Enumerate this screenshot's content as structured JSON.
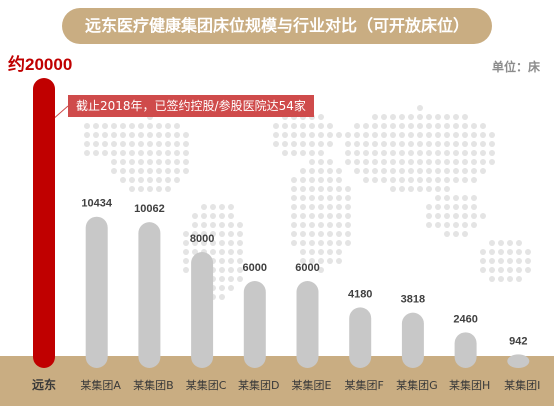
{
  "title": "远东医疗健康集团床位规模与行业对比（可开放床位）",
  "unit": "单位：床",
  "callout": "截止2018年，已签约控股/参股医院达54家",
  "colors": {
    "highlight": "#c00000",
    "bar": "#c8c8c8",
    "banner": "#c9ad82",
    "base": "#c9ad82",
    "callout": "#cf4b4b",
    "map_dots": "#e4e4e4",
    "value_text": "#404040"
  },
  "chart_data": {
    "type": "bar",
    "title": "远东医疗健康集团床位规模与行业对比（可开放床位）",
    "ylabel": "单位：床",
    "xlabel": "",
    "grid": false,
    "legend": "none",
    "ylim": [
      0,
      20000
    ],
    "categories": [
      "远东",
      "某集团A",
      "某集团B",
      "某集团C",
      "某集团D",
      "某集团E",
      "某集团F",
      "某集团G",
      "某集团H",
      "某集团I"
    ],
    "values": [
      20000,
      10434,
      10062,
      8000,
      6000,
      6000,
      4180,
      3818,
      2460,
      942
    ],
    "labels": [
      "约20000",
      "10434",
      "10062",
      "8000",
      "6000",
      "6000",
      "4180",
      "3818",
      "2460",
      "942"
    ],
    "highlight_index": 0
  }
}
